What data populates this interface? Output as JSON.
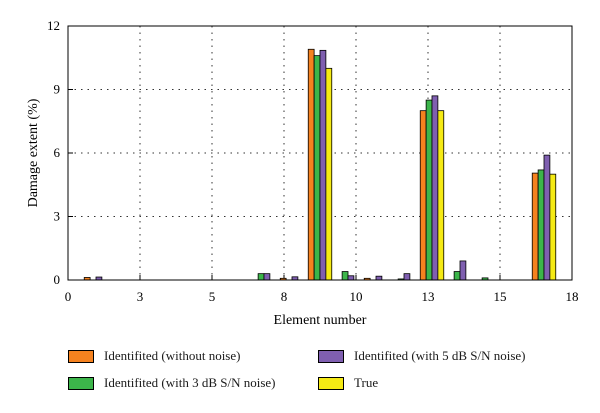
{
  "chart_data": {
    "type": "bar",
    "xlabel": "Element number",
    "ylabel": "Damage extent (%)",
    "xlim": [
      0,
      18
    ],
    "ylim": [
      0,
      12
    ],
    "x_ticks": [
      "0",
      "3",
      "5",
      "8",
      "10",
      "13",
      "15",
      "18"
    ],
    "y_ticks": [
      "0",
      "3",
      "6",
      "9",
      "12"
    ],
    "grid": "dotted",
    "legend_placement": "bottom",
    "categories": [
      1,
      2,
      3,
      4,
      5,
      6,
      7,
      8,
      9,
      10,
      11,
      12,
      13,
      14,
      15,
      16,
      17
    ],
    "series": [
      {
        "name": "Identifited (without noise)",
        "color": "#f5821f",
        "values": [
          0.12,
          0,
          0,
          0,
          0,
          0,
          0,
          0.08,
          10.9,
          0,
          0.08,
          0,
          8.0,
          0,
          0,
          0,
          5.05
        ]
      },
      {
        "name": "Identifited (with 3 dB S/N noise)",
        "color": "#3cb54a",
        "values": [
          0,
          0,
          0,
          0,
          0,
          0,
          0.3,
          0,
          10.6,
          0.4,
          0,
          0.05,
          8.5,
          0.4,
          0.1,
          0,
          5.2
        ]
      },
      {
        "name": "Identifited (with 5 dB S/N noise)",
        "color": "#7f5fb0",
        "values": [
          0.14,
          0,
          0,
          0,
          0,
          0,
          0.3,
          0.15,
          10.85,
          0.2,
          0.18,
          0.3,
          8.7,
          0.9,
          0,
          0,
          5.9
        ]
      },
      {
        "name": "True",
        "color": "#f5ea14",
        "values": [
          0,
          0,
          0,
          0,
          0,
          0,
          0,
          0,
          10.0,
          0,
          0,
          0,
          8.0,
          0,
          0,
          0,
          5.0
        ]
      }
    ]
  }
}
